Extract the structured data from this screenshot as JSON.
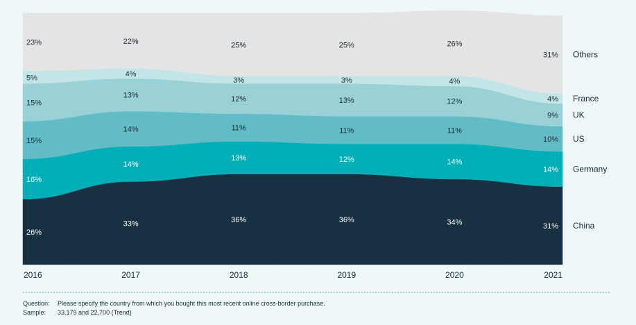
{
  "chart_data": {
    "type": "area",
    "stacked": true,
    "normalized": true,
    "categories": [
      "2016",
      "2017",
      "2018",
      "2019",
      "2020",
      "2021"
    ],
    "series": [
      {
        "name": "China",
        "color": "#173042",
        "label_color": "#ffffff",
        "values": [
          26,
          33,
          36,
          36,
          34,
          31
        ],
        "labels": [
          "26%",
          "33%",
          "36%",
          "36%",
          "34%",
          "31%"
        ]
      },
      {
        "name": "Germany",
        "color": "#02aeb7",
        "label_color": "#ffffff",
        "values": [
          16,
          14,
          13,
          12,
          14,
          14
        ],
        "labels": [
          "16%",
          "14%",
          "13%",
          "12%",
          "14%",
          "14%"
        ]
      },
      {
        "name": "US",
        "color": "#62bcc5",
        "label_color": "#1b2a35",
        "values": [
          15,
          14,
          11,
          11,
          11,
          10
        ],
        "labels": [
          "15%",
          "14%",
          "11%",
          "11%",
          "11%",
          "10%"
        ]
      },
      {
        "name": "UK",
        "color": "#99d1d6",
        "label_color": "#1b2a35",
        "values": [
          15,
          13,
          12,
          13,
          12,
          9
        ],
        "labels": [
          "15%",
          "13%",
          "12%",
          "13%",
          "12%",
          "9%"
        ]
      },
      {
        "name": "France",
        "color": "#c4e5e8",
        "label_color": "#1b2a35",
        "values": [
          5,
          4,
          3,
          3,
          4,
          4
        ],
        "labels": [
          "5%",
          "4%",
          "3%",
          "3%",
          "4%",
          "4%"
        ]
      },
      {
        "name": "Others",
        "color": "#e3e4e3",
        "label_color": "#1b2a35",
        "values": [
          23,
          22,
          25,
          25,
          26,
          31
        ],
        "labels": [
          "23%",
          "22%",
          "25%",
          "25%",
          "26%",
          "31%"
        ]
      }
    ],
    "ylim": [
      0,
      100
    ],
    "grid": false,
    "legend": "right"
  },
  "footer": {
    "question_key": "Question:",
    "question_text": "Please specify the country from which you bought this most recent online cross-border purchase.",
    "sample_key": "Sample:",
    "sample_text": "33,179 and 22,700 (Trend)"
  },
  "colors": {
    "background": "#eef8f9",
    "dotted_rule": "#3fb6bf",
    "axis_text": "#1b2a35"
  }
}
